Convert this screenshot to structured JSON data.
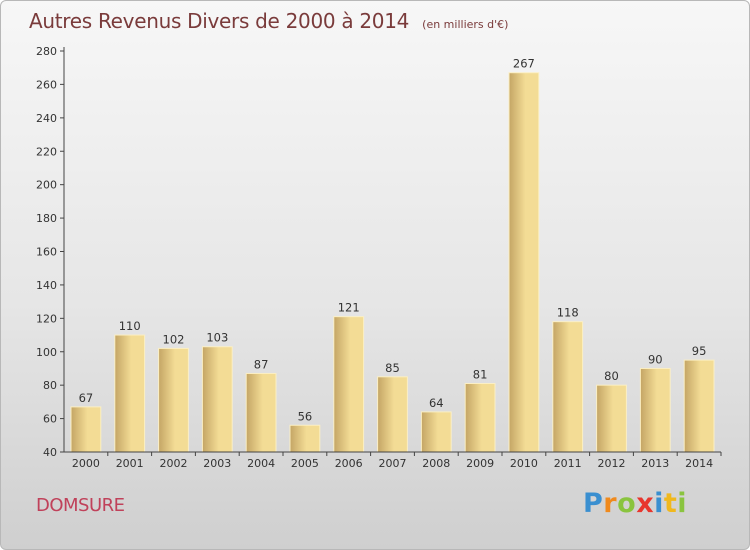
{
  "chart_data": {
    "type": "bar",
    "title": "Autres Revenus Divers de 2000 à 2014",
    "subtitle": "(en milliers d'€)",
    "xlabel": "",
    "ylabel": "",
    "categories": [
      "2000",
      "2001",
      "2002",
      "2003",
      "2004",
      "2005",
      "2006",
      "2007",
      "2008",
      "2009",
      "2010",
      "2011",
      "2012",
      "2013",
      "2014"
    ],
    "values": [
      67,
      110,
      102,
      103,
      87,
      56,
      121,
      85,
      64,
      81,
      267,
      118,
      80,
      90,
      95
    ],
    "ylim": [
      40,
      280
    ],
    "yticks": [
      40,
      60,
      80,
      100,
      120,
      140,
      160,
      180,
      200,
      220,
      240,
      260,
      280
    ],
    "grid": false,
    "bar_color_light": "#f3dc95",
    "bar_color_dark": "#c4a565"
  },
  "footer": {
    "town": "DOMSURE",
    "logo_letters": [
      {
        "char": "P",
        "color": "#3a8fd0"
      },
      {
        "char": "r",
        "color": "#f08a1d"
      },
      {
        "char": "o",
        "color": "#8ac43f"
      },
      {
        "char": "x",
        "color": "#e8362e"
      },
      {
        "char": "i",
        "color": "#3a8fd0"
      },
      {
        "char": "t",
        "color": "#f0b81d"
      },
      {
        "char": "i",
        "color": "#8ac43f"
      }
    ]
  }
}
